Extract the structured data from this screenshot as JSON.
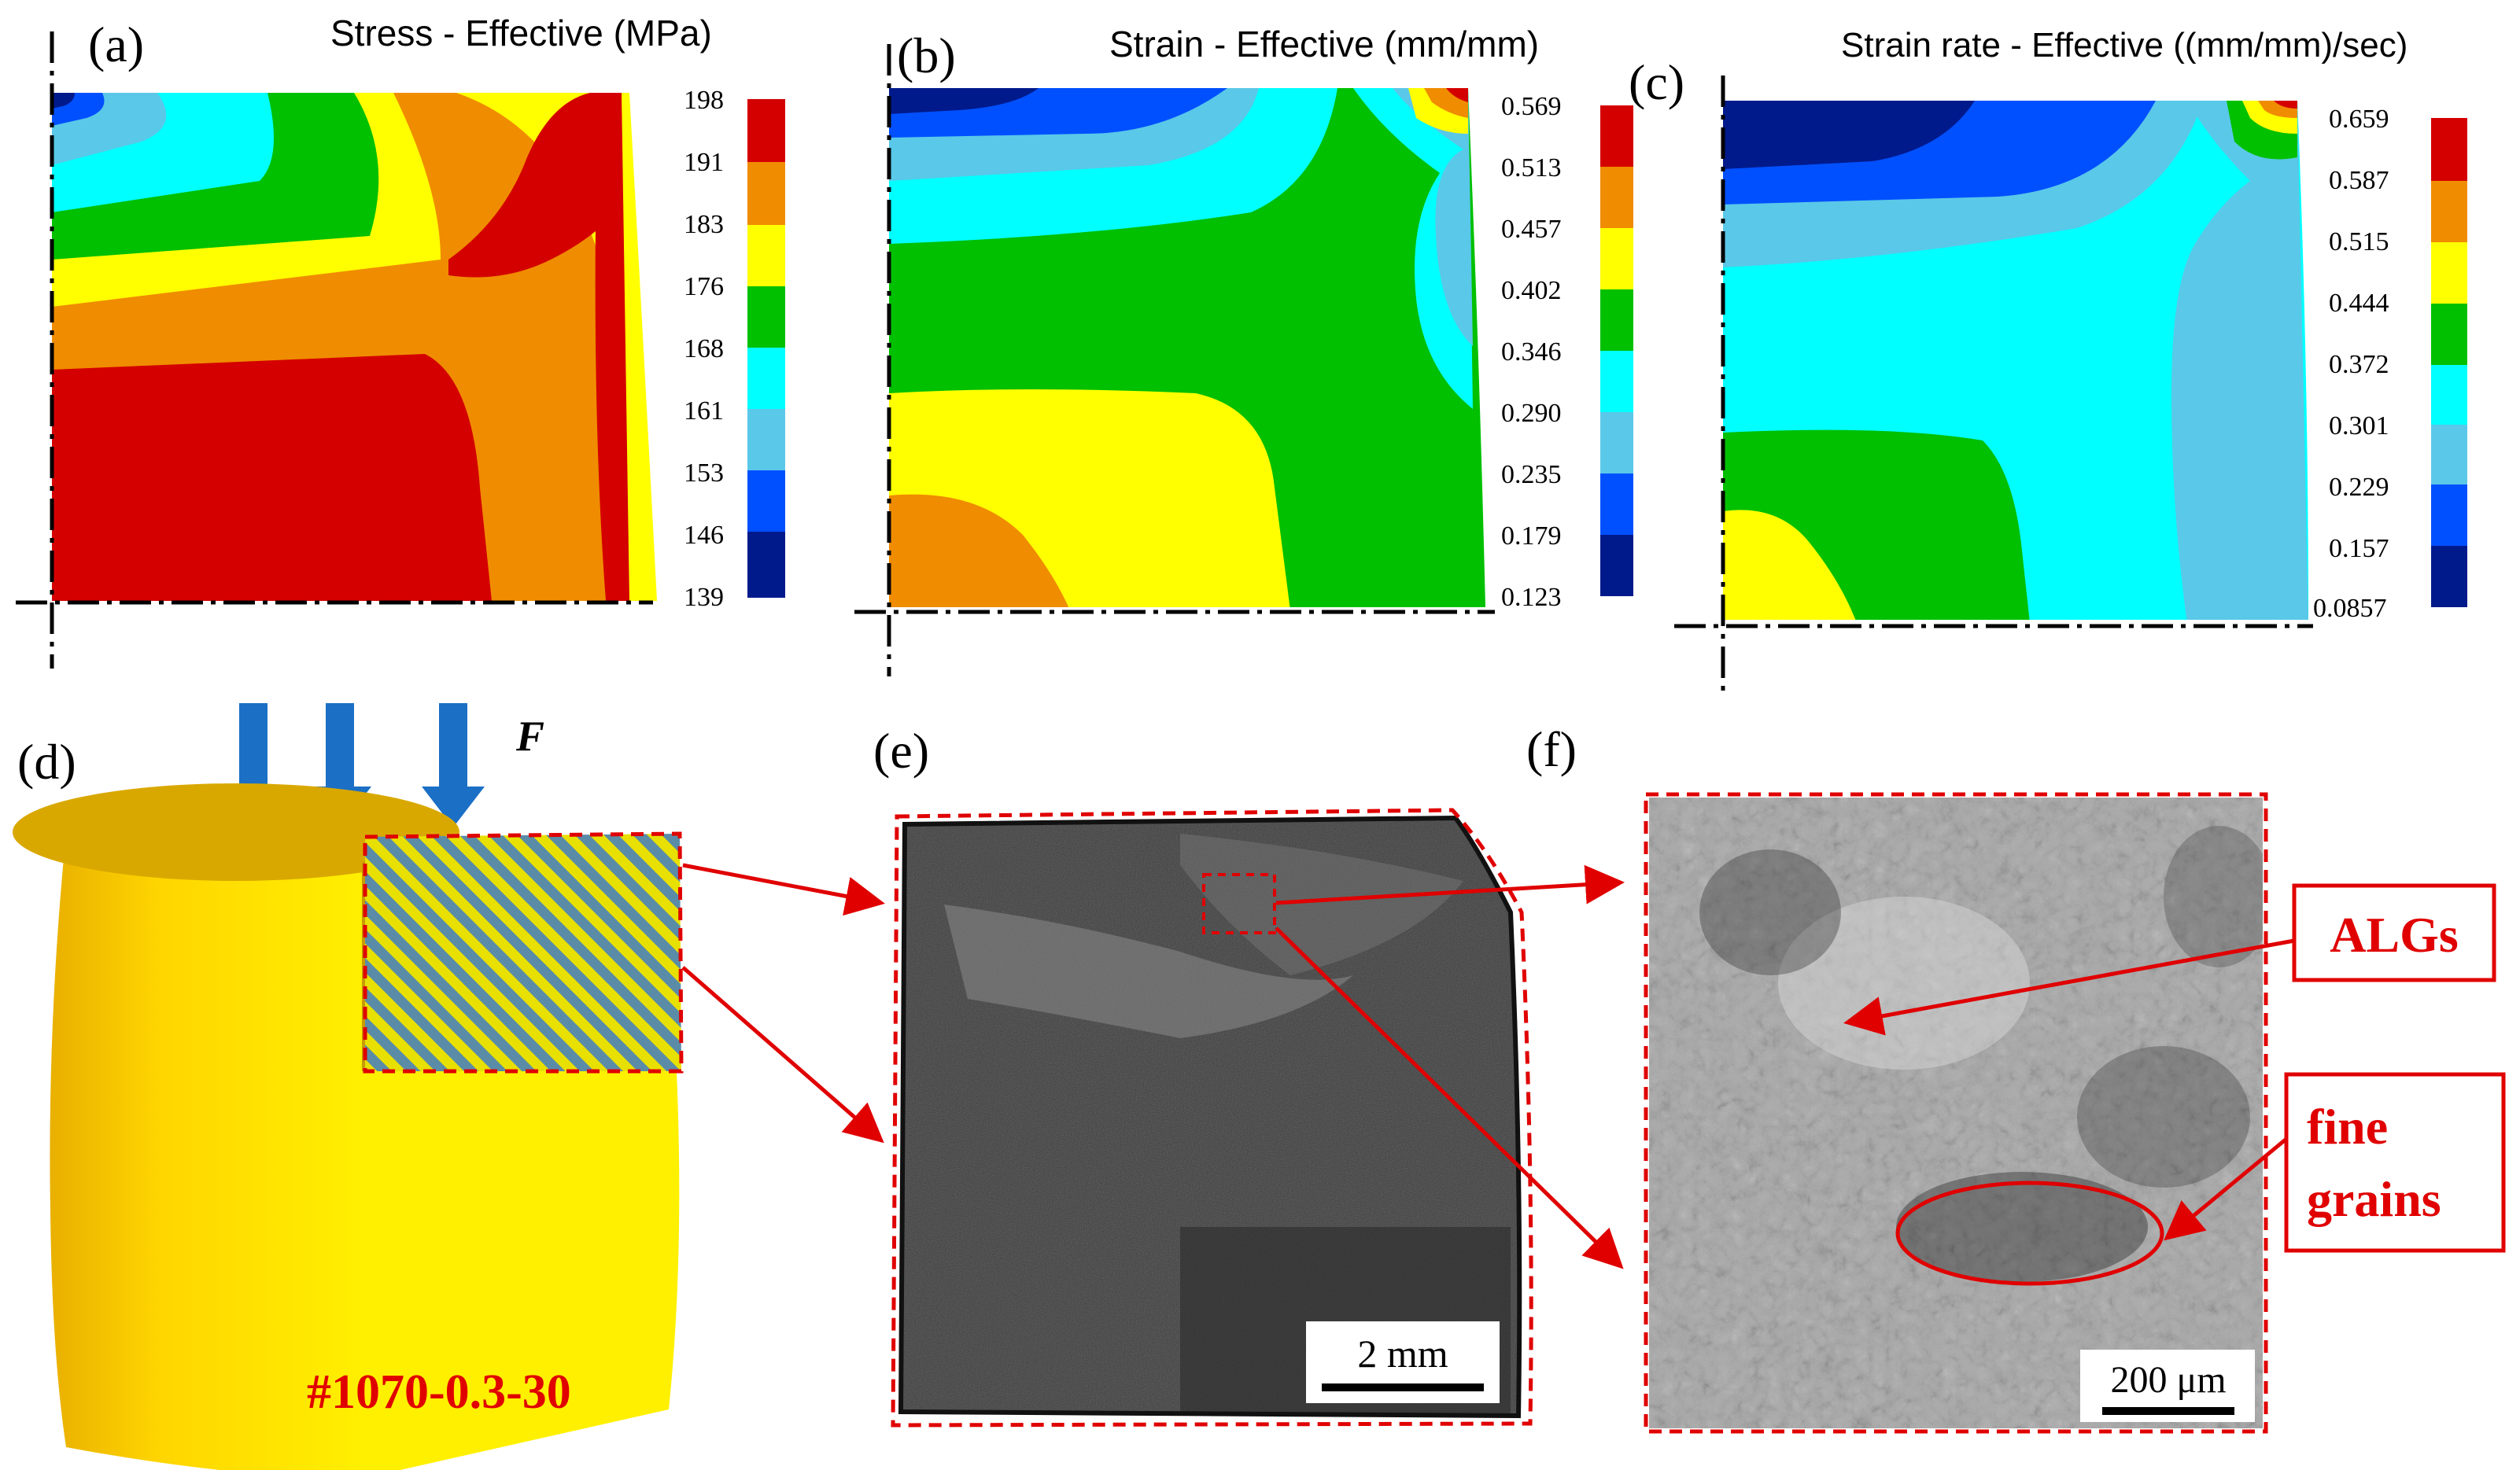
{
  "panels": {
    "a": {
      "label": "(a)",
      "title": "Stress - Effective (MPa)",
      "ticks": [
        "198",
        "191",
        "183",
        "176",
        "168",
        "161",
        "153",
        "146",
        "139"
      ]
    },
    "b": {
      "label": "(b)",
      "title": "Strain - Effective (mm/mm)",
      "ticks": [
        "0.569",
        "0.513",
        "0.457",
        "0.402",
        "0.346",
        "0.290",
        "0.235",
        "0.179",
        "0.123"
      ]
    },
    "c": {
      "label": "(c)",
      "title": "Strain rate - Effective ((mm/mm)/sec)",
      "ticks": [
        "0.659",
        "0.587",
        "0.515",
        "0.444",
        "0.372",
        "0.301",
        "0.229",
        "0.157",
        "0.0857"
      ]
    },
    "d": {
      "label": "(d)",
      "force_label": "F",
      "sample_id": "#1070-0.3-30"
    },
    "e": {
      "label": "(e)",
      "scale_bar": "2 mm"
    },
    "f": {
      "label": "(f)",
      "scale_bar": "200 μm",
      "callout_1": "ALGs",
      "callout_2_line1": "fine",
      "callout_2_line2": "grains"
    }
  },
  "colors": {
    "contour_scale": [
      "#d40000",
      "#f08c00",
      "#ffff00",
      "#00c000",
      "#00ffff",
      "#5ac8e8",
      "#0050ff",
      "#001a8c"
    ],
    "arrow_blue": "#1b6fc5",
    "annotation_red": "#e00000",
    "cylinder_gold": "#ecb800"
  }
}
